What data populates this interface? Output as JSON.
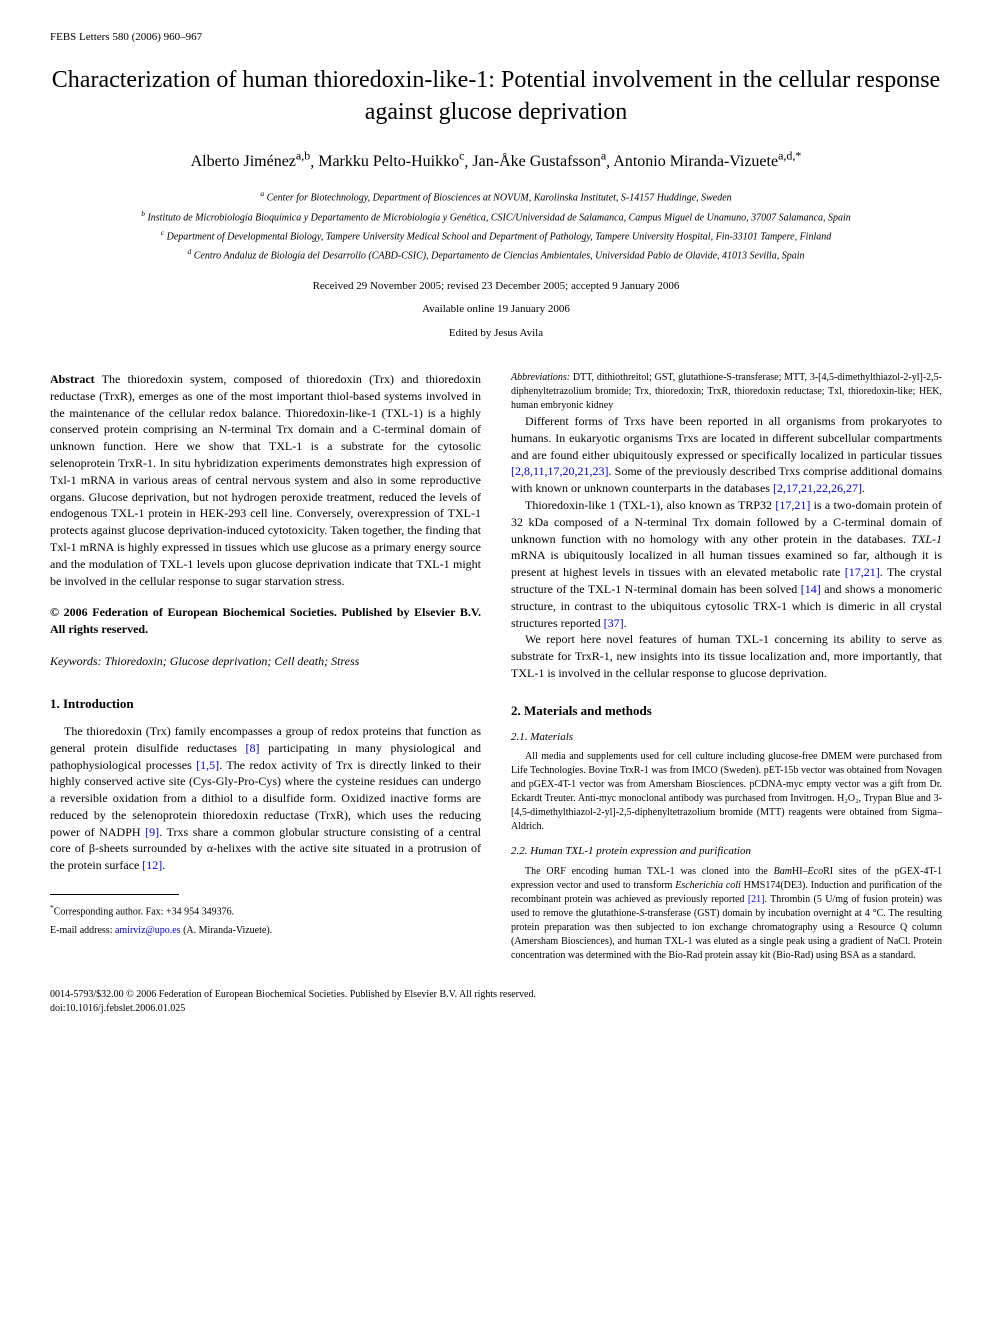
{
  "journal_header": "FEBS Letters 580 (2006) 960–967",
  "title": "Characterization of human thioredoxin-like-1: Potential involvement in the cellular response against glucose deprivation",
  "authors": [
    {
      "name": "Alberto Jiménez",
      "sup": "a,b"
    },
    {
      "name": "Markku Pelto-Huikko",
      "sup": "c"
    },
    {
      "name": "Jan-Åke Gustafsson",
      "sup": "a"
    },
    {
      "name": "Antonio Miranda-Vizuete",
      "sup": "a,d,*"
    }
  ],
  "affiliations": [
    {
      "sup": "a",
      "text": "Center for Biotechnology, Department of Biosciences at NOVUM, Karolinska Institutet, S-14157 Huddinge, Sweden"
    },
    {
      "sup": "b",
      "text": "Instituto de Microbiología Bioquímica y Departamento de Microbiología y Genética, CSIC/Universidad de Salamanca, Campus Miguel de Unamuno, 37007 Salamanca, Spain"
    },
    {
      "sup": "c",
      "text": "Department of Developmental Biology, Tampere University Medical School and Department of Pathology, Tampere University Hospital, Fin-33101 Tampere, Finland"
    },
    {
      "sup": "d",
      "text": "Centro Andaluz de Biología del Desarrollo (CABD-CSIC), Departamento de Ciencias Ambientales, Universidad Pablo de Olavide, 41013 Sevilla, Spain"
    }
  ],
  "dates": "Received 29 November 2005; revised 23 December 2005; accepted 9 January 2006",
  "available_online": "Available online 19 January 2006",
  "edited_by": "Edited by Jesus Avila",
  "abstract_label": "Abstract",
  "abstract_text": "The thioredoxin system, composed of thioredoxin (Trx) and thioredoxin reductase (TrxR), emerges as one of the most important thiol-based systems involved in the maintenance of the cellular redox balance. Thioredoxin-like-1 (TXL-1) is a highly conserved protein comprising an N-terminal Trx domain and a C-terminal domain of unknown function. Here we show that TXL-1 is a substrate for the cytosolic selenoprotein TrxR-1. In situ hybridization experiments demonstrates high expression of Txl-1 mRNA in various areas of central nervous system and also in some reproductive organs. Glucose deprivation, but not hydrogen peroxide treatment, reduced the levels of endogenous TXL-1 protein in HEK-293 cell line. Conversely, overexpression of TXL-1 protects against glucose deprivation-induced cytotoxicity. Taken together, the finding that Txl-1 mRNA is highly expressed in tissues which use glucose as a primary energy source and the modulation of TXL-1 levels upon glucose deprivation indicate that TXL-1 might be involved in the cellular response to sugar starvation stress.",
  "copyright_text": "© 2006 Federation of European Biochemical Societies. Published by Elsevier B.V. All rights reserved.",
  "keywords_label": "Keywords:",
  "keywords_text": "Thioredoxin; Glucose deprivation; Cell death; Stress",
  "sections": {
    "intro_heading": "1. Introduction",
    "intro_p1": "The thioredoxin (Trx) family encompasses a group of redox proteins that function as general protein disulfide reductases [8] participating in many physiological and pathophysiological processes [1,5]. The redox activity of Trx is directly linked to their highly conserved active site (Cys-Gly-Pro-Cys) where the cysteine residues can undergo a reversible oxidation from a dithiol to a disulfide form. Oxidized inactive forms are reduced by the selenoprotein thioredoxin reductase (TrxR), which uses the reducing power of NADPH [9]. Trxs share a common globular structure consisting of a central core of β-sheets surrounded by α-helixes with the active site situated in a protrusion of the protein surface [12].",
    "intro_p2": "Different forms of Trxs have been reported in all organisms from prokaryotes to humans. In eukaryotic organisms Trxs are located in different subcellular compartments and are found either ubiquitously expressed or specifically localized in particular tissues [2,8,11,17,20,21,23]. Some of the previously described Trxs comprise additional domains with known or unknown counterparts in the databases [2,17,21,22,26,27].",
    "intro_p3": "Thioredoxin-like 1 (TXL-1), also known as TRP32 [17,21] is a two-domain protein of 32 kDa composed of a N-terminal Trx domain followed by a C-terminal domain of unknown function with no homology with any other protein in the databases. TXL-1 mRNA is ubiquitously localized in all human tissues examined so far, although it is present at highest levels in tissues with an elevated metabolic rate [17,21]. The crystal structure of the TXL-1 N-terminal domain has been solved [14] and shows a monomeric structure, in contrast to the ubiquitous cytosolic TRX-1 which is dimeric in all crystal structures reported [37].",
    "intro_p4": "We report here novel features of human TXL-1 concerning its ability to serve as substrate for TrxR-1, new insights into its tissue localization and, more importantly, that TXL-1 is involved in the cellular response to glucose deprivation.",
    "methods_heading": "2. Materials and methods",
    "materials_subheading": "2.1. Materials",
    "materials_text": "All media and supplements used for cell culture including glucose-free DMEM were purchased from Life Technologies. Bovine TrxR-1 was from IMCO (Sweden). pET-15b vector was obtained from Novagen and pGEX-4T-1 vector was from Amersham Biosciences. pCDNA-myc empty vector was a gift from Dr. Eckardt Treuter. Anti-myc monoclonal antibody was purchased from Invitrogen. H₂O₂, Trypan Blue and 3-[4,5-dimethylthiazol-2-yl]-2,5-diphenyltetrazolium bromide (MTT) reagents were obtained from Sigma–Aldrich.",
    "expression_subheading": "2.2. Human TXL-1 protein expression and purification",
    "expression_text": "The ORF encoding human TXL-1 was cloned into the BamHI–EcoRI sites of the pGEX-4T-1 expression vector and used to transform Escherichia coli HMS174(DE3). Induction and purification of the recombinant protein was achieved as previously reported [21]. Thrombin (5 U/mg of fusion protein) was used to remove the glutathione-S-transferase (GST) domain by incubation overnight at 4 °C. The resulting protein preparation was then subjected to ion exchange chromatography using a Resource Q column (Amersham Biosciences), and human TXL-1 was eluted as a single peak using a gradient of NaCl. Protein concentration was determined with the Bio-Rad protein assay kit (Bio-Rad) using BSA as a standard."
  },
  "corresponding": "Corresponding author. Fax: +34 954 349376.",
  "email_label": "E-mail address:",
  "email": "amirviz@upo.es",
  "email_author": "(A. Miranda-Vizuete).",
  "abbreviations_label": "Abbreviations:",
  "abbreviations_text": "DTT, dithiothreitol; GST, glutathione-S-transferase; MTT, 3-[4,5-dimethylthiazol-2-yl]-2,5-diphenyltetrazolium bromide; Trx, thioredoxin; TrxR, thioredoxin reductase; Txl, thioredoxin-like; HEK, human embryonic kidney",
  "footer_copyright": "0014-5793/$32.00 © 2006 Federation of European Biochemical Societies. Published by Elsevier B.V. All rights reserved.",
  "doi": "doi:10.1016/j.febslet.2006.01.025"
}
